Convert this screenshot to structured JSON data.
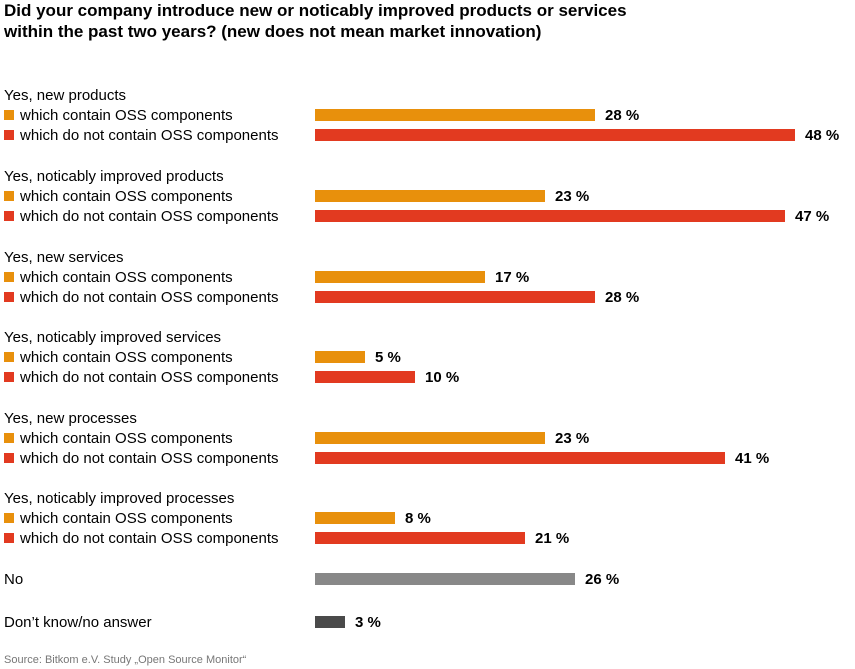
{
  "chart_data": {
    "type": "bar",
    "orientation": "horizontal",
    "title_lines": [
      "Did your company introduce new or noticably improved products or services",
      "within the past two years? (new does not mean market innovation)"
    ],
    "groups": [
      {
        "label": "Yes, new products",
        "rows": [
          {
            "label": "which contain OSS components",
            "value": 28,
            "value_label": "28 %",
            "color": "#e8900c",
            "swatch": true
          },
          {
            "label": "which do not contain OSS components",
            "value": 48,
            "value_label": "48 %",
            "color": "#e23a20",
            "swatch": true
          }
        ]
      },
      {
        "label": "Yes, noticably improved products",
        "rows": [
          {
            "label": "which contain OSS components",
            "value": 23,
            "value_label": "23 %",
            "color": "#e8900c",
            "swatch": true
          },
          {
            "label": "which do not contain OSS components",
            "value": 47,
            "value_label": "47 %",
            "color": "#e23a20",
            "swatch": true
          }
        ]
      },
      {
        "label": "Yes, new services",
        "rows": [
          {
            "label": "which contain OSS components",
            "value": 17,
            "value_label": "17 %",
            "color": "#e8900c",
            "swatch": true
          },
          {
            "label": "which do not contain OSS components",
            "value": 28,
            "value_label": "28 %",
            "color": "#e23a20",
            "swatch": true
          }
        ]
      },
      {
        "label": "Yes, noticably improved services",
        "rows": [
          {
            "label": "which contain OSS components",
            "value": 5,
            "value_label": "5 %",
            "color": "#e8900c",
            "swatch": true
          },
          {
            "label": "which do not contain OSS components",
            "value": 10,
            "value_label": "10 %",
            "color": "#e23a20",
            "swatch": true
          }
        ]
      },
      {
        "label": "Yes, new processes",
        "rows": [
          {
            "label": "which contain OSS components",
            "value": 23,
            "value_label": "23 %",
            "color": "#e8900c",
            "swatch": true
          },
          {
            "label": "which do not contain OSS components",
            "value": 41,
            "value_label": "41 %",
            "color": "#e23a20",
            "swatch": true
          }
        ]
      },
      {
        "label": "Yes, noticably improved processes",
        "rows": [
          {
            "label": "which contain OSS components",
            "value": 8,
            "value_label": "8 %",
            "color": "#e8900c",
            "swatch": true
          },
          {
            "label": "which do not contain OSS components",
            "value": 21,
            "value_label": "21 %",
            "color": "#e23a20",
            "swatch": true
          }
        ]
      },
      {
        "label": "",
        "rows": [
          {
            "label": "No",
            "value": 26,
            "value_label": "26 %",
            "color": "#888888",
            "swatch": false
          }
        ]
      },
      {
        "label": "",
        "rows": [
          {
            "label": "Don’t know/no answer",
            "value": 3,
            "value_label": "3 %",
            "color": "#4a4a4a",
            "swatch": false
          }
        ]
      }
    ],
    "xlim": [
      0,
      48
    ],
    "grid": false,
    "source": "Source: Bitkom e.V. Study „Open Source Monitor“"
  }
}
